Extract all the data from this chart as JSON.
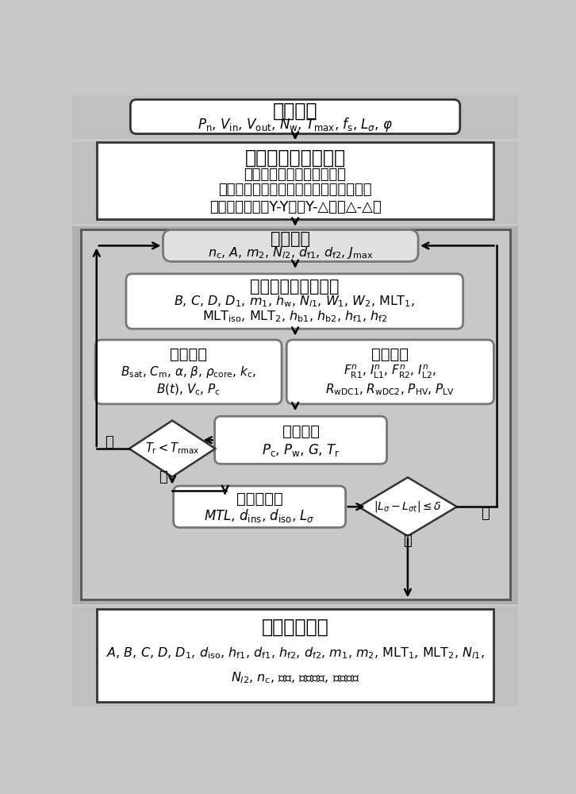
{
  "bg_outer": "#c8c8c8",
  "bg_inner_loop": "#b8b8b8",
  "bg_inner_content": "#d0d0d0",
  "box_white": "#ffffff",
  "box_rounded_fill": "#e0e0e0",
  "edge_dark": "#333333",
  "edge_medium": "#777777",
  "block1_title": "系统参数",
  "block1_sub": "$P_{\\mathrm{n}}$, $V_{\\mathrm{in}}$, $V_{\\mathrm{out}}$, $N_{\\mathrm{w}}$, $T_{\\mathrm{max}}$, $f_{\\mathrm{s}}$, $L_{\\sigma}$, $\\varphi$",
  "block2_title": "铁心和绕组拓扑结构",
  "block2_line1": "铁心结构：双框式；四框式",
  "block2_line2": "铁心材料：非晶、纳米晶、铁氧体、硅钢",
  "block2_line3": "绕组联接方式：Y-Y型、Y-△型、△-△型",
  "block3_title": "扫描参数",
  "block3_sub": "$n_{\\mathrm{c}}$, $A$, $m_2$, $N_{l2}$, $d_{\\mathrm{f1}}$, $d_{\\mathrm{f2}}$, $J_{\\mathrm{max}}$",
  "block4_title": "铁心和绕组尺寸计算",
  "block4_line1": "$B$, $C$, $D$, $D_1$, $m_1$, $h_{\\mathrm{w}}$, $N_{l1}$, $W_1$, $W_2$, $\\mathrm{MLT}_1$,",
  "block4_line2": "$\\mathrm{MLT}_{\\mathrm{iso}}$, $\\mathrm{MLT}_2$, $h_{\\mathrm{b1}}$, $h_{\\mathrm{b2}}$, $h_{\\mathrm{f1}}$, $h_{\\mathrm{f2}}$",
  "block5a_title": "铁心损耗",
  "block5a_line1": "$B_{\\mathrm{sat}}$, $C_{\\mathrm{m}}$, $\\alpha$, $\\beta$, $\\rho_{\\mathrm{core}}$, $k_{\\mathrm{c}}$,",
  "block5a_line2": "$B(t)$, $V_{\\mathrm{c}}$, $P_{\\mathrm{c}}$",
  "block5b_title": "绕组损耗",
  "block5b_line1": "$F^n_{\\mathrm{R1}}$, $I^n_{\\mathrm{L1}}$, $F^n_{\\mathrm{R2}}$, $I^n_{\\mathrm{L2}}$,",
  "block5b_line2": "$R_{\\mathrm{wDC1}}$, $R_{\\mathrm{wDC2}}$, $P_{\\mathrm{HV}}$, $P_{\\mathrm{LV}}$",
  "block6_title": "温升控制",
  "block6_sub": "$P_{\\mathrm{c}}$, $P_{\\mathrm{w}}$, $G$, $T_{\\mathrm{r}}$",
  "diamond1_label": "$T_{\\mathrm{r}}<T_{\\mathrm{rmax}}$",
  "diamond1_yes": "是",
  "diamond1_no": "否",
  "block7_title": "漏电感控制",
  "block7_sub": "$MTL$, $d_{\\mathrm{ins}}$, $d_{\\mathrm{iso}}$, $L_{\\sigma}$",
  "diamond2_label": "$|L_{\\sigma}-L_{\\sigma t}|\\leq\\delta$",
  "diamond2_yes": "是",
  "diamond2_no": "否",
  "block8_title": "输出设计结果",
  "block8_line1": "$A$, $B$, $C$, $D$, $D_1$, $d_{\\mathrm{iso}}$, $h_{\\mathrm{f1}}$, $d_{\\mathrm{f1}}$, $h_{\\mathrm{f2}}$, $d_{\\mathrm{f2}}$, $m_1$, $m_2$, $\\mathrm{MLT}_1$, $\\mathrm{MLT}_2$, $N_{l1}$,",
  "block8_line2": "$N_{l2}$, $n_{\\mathrm{c}}$, 效率, 功率密度, 最大温升"
}
